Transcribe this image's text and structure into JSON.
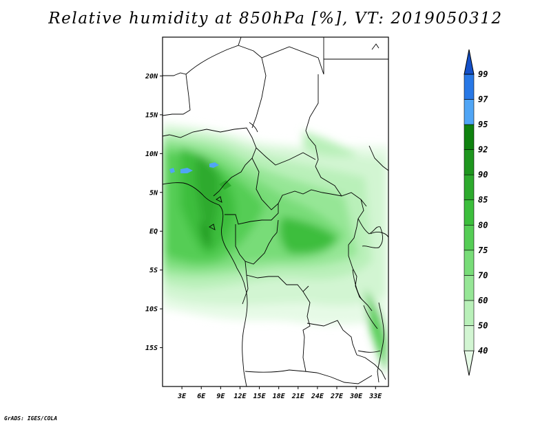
{
  "title": "Relative humidity at 850hPa [%], VT: 2019050312",
  "credit": "GrADS: IGES/COLA",
  "map": {
    "lon_range": [
      0,
      35
    ],
    "lat_range": [
      -20,
      25
    ],
    "lat_ticks": [
      {
        "value": 20,
        "label": "20N"
      },
      {
        "value": 15,
        "label": "15N"
      },
      {
        "value": 10,
        "label": "10N"
      },
      {
        "value": 5,
        "label": "5N"
      },
      {
        "value": 0,
        "label": "EQ"
      },
      {
        "value": -5,
        "label": "5S"
      },
      {
        "value": -10,
        "label": "10S"
      },
      {
        "value": -15,
        "label": "15S"
      }
    ],
    "lon_ticks": [
      {
        "value": 3,
        "label": "3E"
      },
      {
        "value": 6,
        "label": "6E"
      },
      {
        "value": 9,
        "label": "9E"
      },
      {
        "value": 12,
        "label": "12E"
      },
      {
        "value": 15,
        "label": "15E"
      },
      {
        "value": 18,
        "label": "18E"
      },
      {
        "value": 21,
        "label": "21E"
      },
      {
        "value": 24,
        "label": "24E"
      },
      {
        "value": 27,
        "label": "27E"
      },
      {
        "value": 30,
        "label": "30E"
      },
      {
        "value": 33,
        "label": "33E"
      }
    ]
  },
  "colorbar": {
    "levels": [
      "40",
      "50",
      "60",
      "70",
      "75",
      "80",
      "85",
      "90",
      "92",
      "95",
      "97",
      "99"
    ],
    "colors": [
      "#e6fae6",
      "#d2f5d2",
      "#b9f0b9",
      "#96e696",
      "#78dc78",
      "#55cd55",
      "#3cbe3c",
      "#2daa2d",
      "#1e961e",
      "#0f820f",
      "#50a5f5",
      "#2878e6",
      "#1450c8"
    ]
  }
}
